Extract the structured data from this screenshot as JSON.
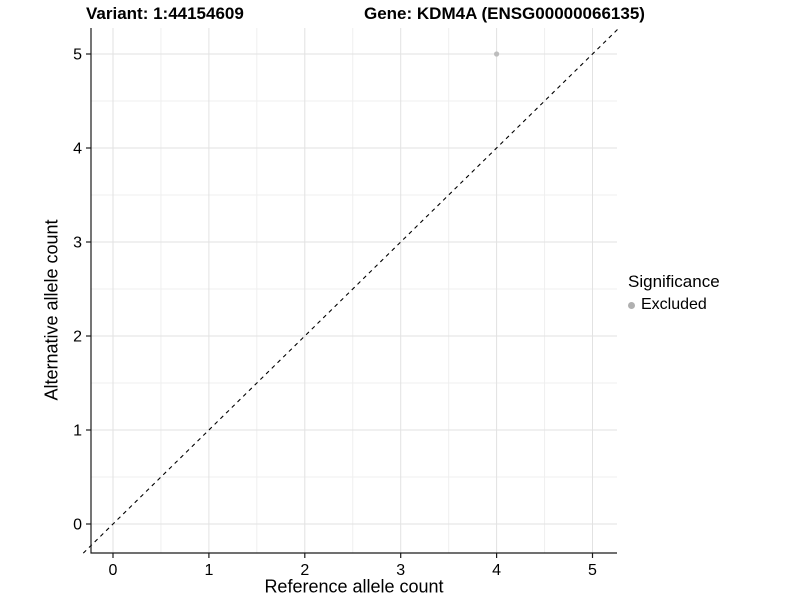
{
  "header": {
    "variant_title": "Variant: 1:44154609",
    "gene_title": "Gene: KDM4A (ENSG00000066135)"
  },
  "chart_data": {
    "type": "scatter",
    "xlabel": "Reference allele count",
    "ylabel": "Alternative allele count",
    "xlim": [
      -0.25,
      5.25
    ],
    "ylim": [
      -0.25,
      5.25
    ],
    "x_ticks": [
      0,
      1,
      2,
      3,
      4,
      5
    ],
    "y_ticks": [
      0,
      1,
      2,
      3,
      4,
      5
    ],
    "grid": "major+minor",
    "identity_line": {
      "slope": 1,
      "intercept": 0,
      "style": "dashed"
    },
    "points": [
      {
        "x": 4,
        "y": 5,
        "series": "Excluded"
      }
    ],
    "legend": {
      "title": "Significance",
      "position": "right",
      "items": [
        {
          "label": "Excluded",
          "color": "#b0b0b0"
        }
      ]
    },
    "colors": {
      "point": "#bdbdbd",
      "grid_major": "#e2e2e2",
      "grid_minor": "#efefef",
      "axis": "#1a1a1a",
      "identity_line": "#000000",
      "text": "#000000"
    }
  }
}
